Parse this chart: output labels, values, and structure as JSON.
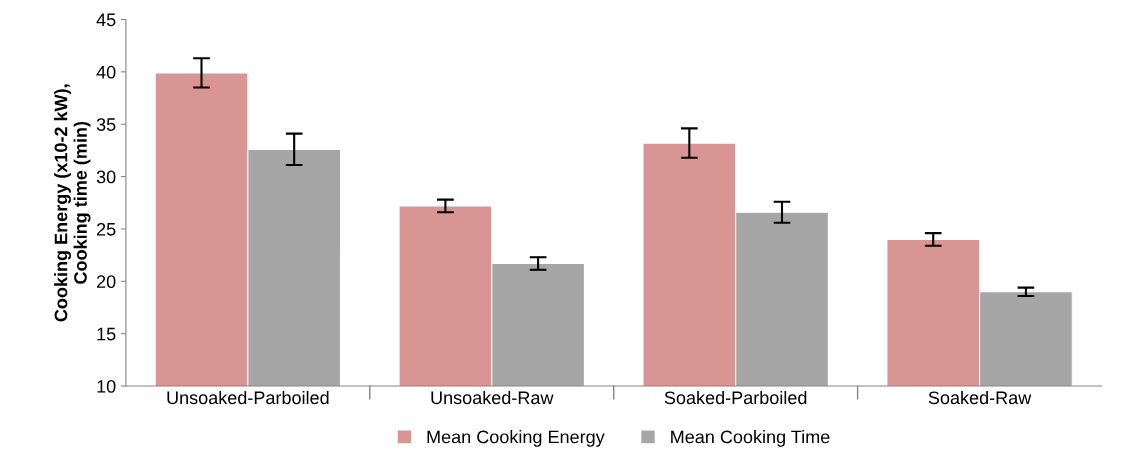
{
  "chart_data": {
    "type": "bar",
    "ylabel": "Cooking Energy (x10-2 kW),\nCooking time (min)",
    "categories": [
      "Unsoaked-Parboiled",
      "Unsoaked-Raw",
      "Soaked-Parboiled",
      "Soaked-Raw"
    ],
    "series": [
      {
        "name": "Mean Cooking Energy",
        "color": "#d99594",
        "values": [
          39.9,
          27.2,
          33.2,
          24.0
        ],
        "errors": [
          1.4,
          0.6,
          1.4,
          0.6
        ]
      },
      {
        "name": "Mean Cooking Time",
        "color": "#a6a6a6",
        "values": [
          32.6,
          21.7,
          26.6,
          19.0
        ],
        "errors": [
          1.5,
          0.6,
          1.0,
          0.4
        ]
      }
    ],
    "ylim": [
      10,
      45
    ],
    "yticks": [
      10,
      15,
      20,
      25,
      30,
      35,
      40,
      45
    ],
    "grid": false,
    "legend": "bottom"
  }
}
